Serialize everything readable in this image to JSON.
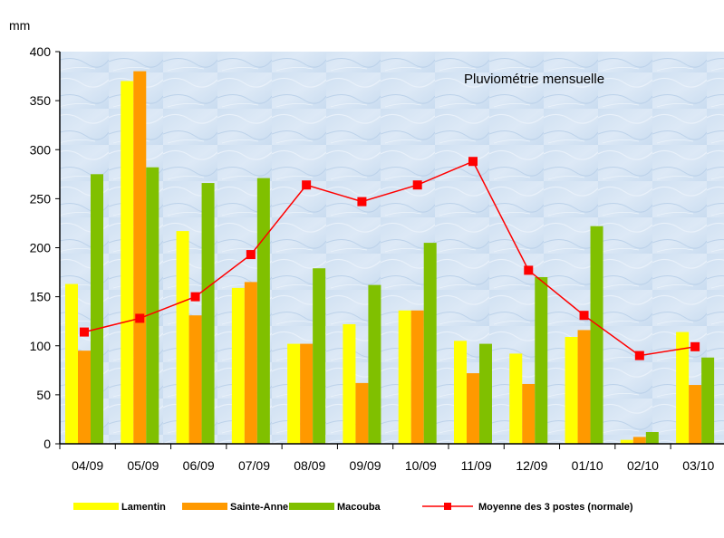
{
  "chart_data": {
    "type": "bar",
    "title": "Pluviométrie mensuelle",
    "ylabel": "mm",
    "xlabel": "",
    "ylim": [
      0,
      400
    ],
    "yticks": [
      0,
      50,
      100,
      150,
      200,
      250,
      300,
      350,
      400
    ],
    "categories": [
      "04/09",
      "05/09",
      "06/09",
      "07/09",
      "08/09",
      "09/09",
      "10/09",
      "11/09",
      "12/09",
      "01/10",
      "02/10",
      "03/10"
    ],
    "series": [
      {
        "name": "Lamentin",
        "kind": "bar",
        "color": "#ffff00",
        "values": [
          163,
          370,
          217,
          159,
          102,
          122,
          136,
          105,
          92,
          109,
          4,
          114
        ]
      },
      {
        "name": "Sainte-Anne",
        "kind": "bar",
        "color": "#ff9900",
        "values": [
          95,
          380,
          131,
          165,
          102,
          62,
          136,
          72,
          61,
          116,
          7,
          60
        ]
      },
      {
        "name": "Macouba",
        "kind": "bar",
        "color": "#80c000",
        "values": [
          275,
          282,
          266,
          271,
          179,
          162,
          205,
          102,
          170,
          222,
          12,
          88
        ]
      },
      {
        "name": "Moyenne des 3 postes (normale)",
        "kind": "line",
        "color": "#ff0000",
        "values": [
          114,
          128,
          150,
          193,
          264,
          247,
          264,
          288,
          177,
          131,
          90,
          99
        ]
      }
    ],
    "legend_position": "bottom",
    "grid": false
  }
}
